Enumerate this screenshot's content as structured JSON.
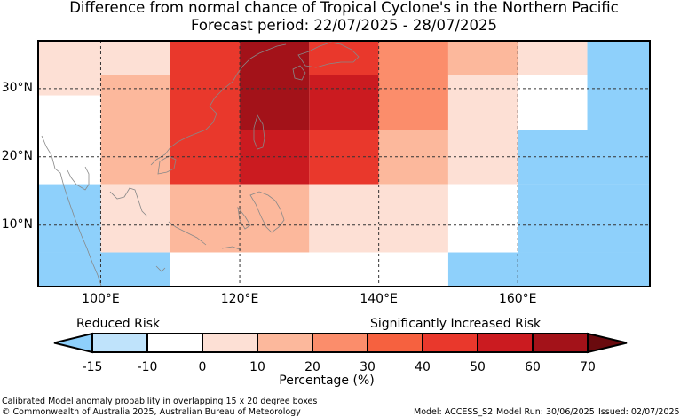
{
  "title": {
    "line1": "Difference from normal chance of Tropical Cyclone's in the Northern Pacific",
    "line2": "Forecast period: 22/07/2025 - 28/07/2025"
  },
  "map": {
    "lon_range": [
      91,
      179
    ],
    "lat_range": [
      1,
      37
    ],
    "lat_labels": [
      {
        "lat": 30,
        "text": "30°N"
      },
      {
        "lat": 20,
        "text": "20°N"
      },
      {
        "lat": 10,
        "text": "10°N"
      }
    ],
    "lon_labels": [
      {
        "lon": 100,
        "text": "100°E"
      },
      {
        "lon": 120,
        "text": "120°E"
      },
      {
        "lon": 140,
        "text": "140°E"
      },
      {
        "lon": 160,
        "text": "160°E"
      }
    ],
    "cells": [
      {
        "lon": [
          91,
          100
        ],
        "lat": [
          29,
          37
        ],
        "level": "0-10"
      },
      {
        "lon": [
          100,
          110
        ],
        "lat": [
          32,
          37
        ],
        "level": "0-10"
      },
      {
        "lon": [
          110,
          120
        ],
        "lat": [
          32,
          37
        ],
        "level": "40-50"
      },
      {
        "lon": [
          120,
          130
        ],
        "lat": [
          32,
          37
        ],
        "level": "60-70"
      },
      {
        "lon": [
          130,
          140
        ],
        "lat": [
          32,
          37
        ],
        "level": "40-50"
      },
      {
        "lon": [
          140,
          150
        ],
        "lat": [
          32,
          37
        ],
        "level": "20-30"
      },
      {
        "lon": [
          150,
          160
        ],
        "lat": [
          32,
          37
        ],
        "level": "10-20"
      },
      {
        "lon": [
          160,
          170
        ],
        "lat": [
          32,
          37
        ],
        "level": "0-10"
      },
      {
        "lon": [
          170,
          179
        ],
        "lat": [
          32,
          37
        ],
        "level": "-15--10"
      },
      {
        "lon": [
          100,
          110
        ],
        "lat": [
          24,
          32
        ],
        "level": "10-20"
      },
      {
        "lon": [
          110,
          120
        ],
        "lat": [
          24,
          32
        ],
        "level": "40-50"
      },
      {
        "lon": [
          120,
          130
        ],
        "lat": [
          24,
          32
        ],
        "level": "60-70"
      },
      {
        "lon": [
          130,
          140
        ],
        "lat": [
          24,
          32
        ],
        "level": "50-60"
      },
      {
        "lon": [
          140,
          150
        ],
        "lat": [
          24,
          32
        ],
        "level": "20-30"
      },
      {
        "lon": [
          150,
          160
        ],
        "lat": [
          24,
          32
        ],
        "level": "0-10"
      },
      {
        "lon": [
          160,
          170
        ],
        "lat": [
          24,
          32
        ],
        "level": "-10-0"
      },
      {
        "lon": [
          170,
          179
        ],
        "lat": [
          24,
          32
        ],
        "level": "-15--10"
      },
      {
        "lon": [
          91,
          100
        ],
        "lat": [
          16,
          24
        ],
        "level": "-10-0"
      },
      {
        "lon": [
          100,
          110
        ],
        "lat": [
          16,
          24
        ],
        "level": "10-20"
      },
      {
        "lon": [
          110,
          120
        ],
        "lat": [
          16,
          24
        ],
        "level": "40-50"
      },
      {
        "lon": [
          120,
          130
        ],
        "lat": [
          16,
          24
        ],
        "level": "50-60"
      },
      {
        "lon": [
          130,
          140
        ],
        "lat": [
          16,
          24
        ],
        "level": "40-50"
      },
      {
        "lon": [
          140,
          150
        ],
        "lat": [
          16,
          24
        ],
        "level": "10-20"
      },
      {
        "lon": [
          150,
          160
        ],
        "lat": [
          16,
          24
        ],
        "level": "0-10"
      },
      {
        "lon": [
          160,
          179
        ],
        "lat": [
          16,
          24
        ],
        "level": "-15--10"
      },
      {
        "lon": [
          91,
          100
        ],
        "lat": [
          6,
          16
        ],
        "level": "-15--10"
      },
      {
        "lon": [
          100,
          110
        ],
        "lat": [
          6,
          16
        ],
        "level": "0-10"
      },
      {
        "lon": [
          110,
          130
        ],
        "lat": [
          6,
          16
        ],
        "level": "10-20"
      },
      {
        "lon": [
          130,
          150
        ],
        "lat": [
          6,
          16
        ],
        "level": "0-10"
      },
      {
        "lon": [
          150,
          160
        ],
        "lat": [
          6,
          16
        ],
        "level": "-10-0"
      },
      {
        "lon": [
          160,
          179
        ],
        "lat": [
          6,
          16
        ],
        "level": "-15--10"
      },
      {
        "lon": [
          91,
          110
        ],
        "lat": [
          1,
          6
        ],
        "level": "-15--10"
      },
      {
        "lon": [
          110,
          150
        ],
        "lat": [
          1,
          6
        ],
        "level": "-10-0"
      },
      {
        "lon": [
          150,
          179
        ],
        "lat": [
          1,
          6
        ],
        "level": "-15--10"
      }
    ]
  },
  "colorbar": {
    "reduced_label": "Reduced Risk",
    "increased_label": "Significantly Increased Risk",
    "title": "Percentage (%)",
    "ticks": [
      "-15",
      "-10",
      "0",
      "10",
      "20",
      "30",
      "40",
      "50",
      "60",
      "70"
    ],
    "bins": [
      {
        "range": "-15--10",
        "color": "#bfe3fb"
      },
      {
        "range": "-10-0",
        "color": "#ffffff"
      },
      {
        "range": "0-10",
        "color": "#fde0d5"
      },
      {
        "range": "10-20",
        "color": "#fcb89c"
      },
      {
        "range": "20-30",
        "color": "#fb8d6b"
      },
      {
        "range": "30-40",
        "color": "#f6613f"
      },
      {
        "range": "40-50",
        "color": "#e9382c"
      },
      {
        "range": "50-60",
        "color": "#cb1b20"
      },
      {
        "range": "60-70",
        "color": "#a31219"
      }
    ],
    "under_color": "#8ed0fb",
    "over_color": "#6a0a0e"
  },
  "colors": {
    "strong_reduced": "#8ed0fb",
    "reduced": "#bfe3fb",
    "neutral": "#ffffff",
    "coastline": "#888888"
  },
  "footer": {
    "method": "Calibrated Model anomaly probability in overlapping 15 x 20 degree boxes",
    "copyright": "© Commonwealth of Australia 2025, Australian Bureau of Meteorology",
    "model": "Model: ACCESS_S2",
    "model_run": "Model Run: 30/06/2025",
    "issued": "Issued: 02/07/2025"
  }
}
